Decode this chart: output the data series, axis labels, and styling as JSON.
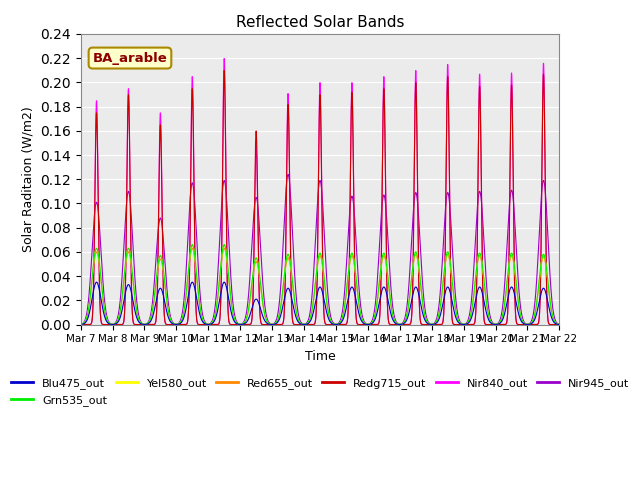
{
  "title": "Reflected Solar Bands",
  "xlabel": "Time",
  "ylabel": "Solar Raditaion (W/m2)",
  "annotation": "BA_arable",
  "ylim": [
    0,
    0.24
  ],
  "xtick_labels": [
    "Mar 7",
    "Mar 8",
    "Mar 9",
    "Mar 10",
    "Mar 11",
    "Mar 12",
    "Mar 13",
    "Mar 14",
    "Mar 15",
    "Mar 16",
    "Mar 17",
    "Mar 18",
    "Mar 19",
    "Mar 20",
    "Mar 21",
    "Mar 22"
  ],
  "series": {
    "Blu475_out": {
      "color": "#0000cc"
    },
    "Grn535_out": {
      "color": "#00ee00"
    },
    "Yel580_out": {
      "color": "#ffff00"
    },
    "Red655_out": {
      "color": "#ff8800"
    },
    "Redg715_out": {
      "color": "#cc0000"
    },
    "Nir840_out": {
      "color": "#ff00ff"
    },
    "Nir945_out": {
      "color": "#9900cc"
    }
  },
  "nir840_peaks": [
    0.185,
    0.195,
    0.175,
    0.205,
    0.22,
    0.148,
    0.191,
    0.2,
    0.2,
    0.205,
    0.21,
    0.215,
    0.207,
    0.208,
    0.216
  ],
  "nir945_peaks": [
    0.101,
    0.11,
    0.088,
    0.117,
    0.119,
    0.105,
    0.124,
    0.119,
    0.106,
    0.107,
    0.109,
    0.109,
    0.11,
    0.111,
    0.119
  ],
  "blu_peaks": [
    0.035,
    0.033,
    0.03,
    0.035,
    0.035,
    0.021,
    0.03,
    0.031,
    0.031,
    0.031,
    0.031,
    0.031,
    0.031,
    0.031,
    0.03
  ],
  "grn_peaks": [
    0.063,
    0.063,
    0.057,
    0.066,
    0.066,
    0.055,
    0.058,
    0.059,
    0.059,
    0.059,
    0.06,
    0.06,
    0.059,
    0.059,
    0.058
  ],
  "yel_peaks": [
    0.063,
    0.063,
    0.057,
    0.066,
    0.066,
    0.055,
    0.058,
    0.059,
    0.059,
    0.059,
    0.06,
    0.06,
    0.059,
    0.059,
    0.058
  ],
  "red_peaks": [
    0.06,
    0.06,
    0.054,
    0.063,
    0.063,
    0.052,
    0.055,
    0.057,
    0.057,
    0.057,
    0.058,
    0.058,
    0.057,
    0.057,
    0.056
  ],
  "redg_peaks": [
    0.175,
    0.19,
    0.165,
    0.195,
    0.21,
    0.16,
    0.182,
    0.19,
    0.192,
    0.195,
    0.2,
    0.205,
    0.197,
    0.198,
    0.207
  ],
  "plot_bg": "#ebebeb"
}
